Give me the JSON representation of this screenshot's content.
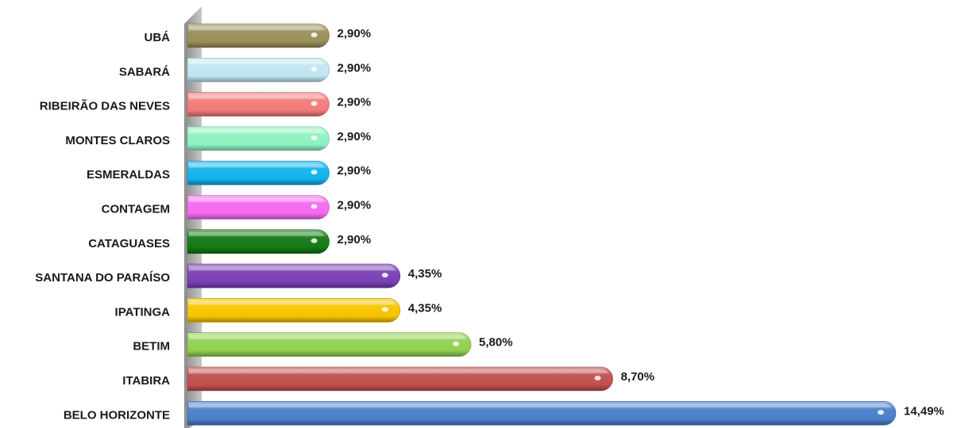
{
  "chart_data": {
    "type": "bar",
    "orientation": "horizontal",
    "title": "",
    "xlabel": "",
    "ylabel": "",
    "xlim": [
      0,
      14.49
    ],
    "grid": false,
    "legend": "none",
    "categories": [
      "UBÁ",
      "SABARÁ",
      "RIBEIRÃO DAS NEVES",
      "MONTES CLAROS",
      "ESMERALDAS",
      "CONTAGEM",
      "CATAGUASES",
      "SANTANA DO PARAÍSO",
      "IPATINGA",
      "BETIM",
      "ITABIRA",
      "BELO HORIZONTE"
    ],
    "values": [
      2.9,
      2.9,
      2.9,
      2.9,
      2.9,
      2.9,
      2.9,
      4.35,
      4.35,
      5.8,
      8.7,
      14.49
    ],
    "value_labels": [
      "2,90%",
      "2,90%",
      "2,90%",
      "2,90%",
      "2,90%",
      "2,90%",
      "2,90%",
      "4,35%",
      "4,35%",
      "5,80%",
      "8,70%",
      "14,49%"
    ],
    "colors": [
      "#9a8f5a",
      "#bfe6f2",
      "#f27b7b",
      "#8ef2c0",
      "#12b2ec",
      "#f56af0",
      "#127a12",
      "#7a3fb5",
      "#f5c400",
      "#92d050",
      "#c0504d",
      "#4a7fca"
    ]
  }
}
